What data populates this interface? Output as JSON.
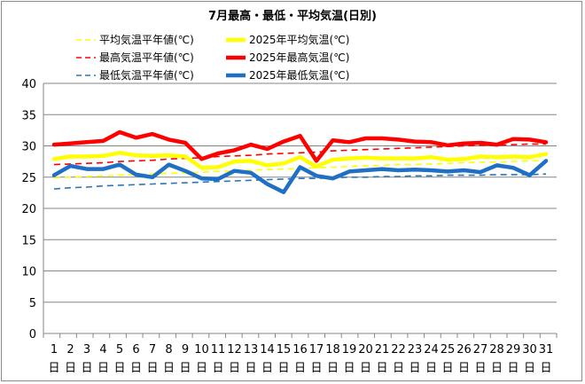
{
  "chart_data": {
    "type": "line",
    "title": "7月最高・最低・平均気温(日別)",
    "xlabel": "",
    "ylabel": "",
    "ylim": [
      0,
      40
    ],
    "yticks": [
      0,
      5,
      10,
      15,
      20,
      25,
      30,
      35,
      40
    ],
    "day_suffix": "日",
    "categories": [
      1,
      2,
      3,
      4,
      5,
      6,
      7,
      8,
      9,
      10,
      11,
      12,
      13,
      14,
      15,
      16,
      17,
      18,
      19,
      20,
      21,
      22,
      23,
      24,
      25,
      26,
      27,
      28,
      29,
      30,
      31
    ],
    "grid": "horizontal",
    "legend_position": "top",
    "series": [
      {
        "name": "平均気温平年値(℃)",
        "color": "#ffff00",
        "style": "dashed",
        "values": [
          24.9,
          25.0,
          25.1,
          25.2,
          25.3,
          25.4,
          25.5,
          25.6,
          25.7,
          25.8,
          25.9,
          26.0,
          26.1,
          26.2,
          26.3,
          26.4,
          26.5,
          26.6,
          26.7,
          26.8,
          26.9,
          27.0,
          27.0,
          27.1,
          27.2,
          27.3,
          27.4,
          27.4,
          27.5,
          27.6,
          27.6
        ]
      },
      {
        "name": "2025年平均気温(℃)",
        "color": "#ffff00",
        "style": "solid",
        "values": [
          27.9,
          28.3,
          28.3,
          28.4,
          28.9,
          28.5,
          28.4,
          28.5,
          28.3,
          26.5,
          26.6,
          27.5,
          27.6,
          26.9,
          27.2,
          28.2,
          26.7,
          27.8,
          28.0,
          28.1,
          28.0,
          28.0,
          28.0,
          28.2,
          27.8,
          27.9,
          28.3,
          28.2,
          28.3,
          28.2,
          28.7
        ]
      },
      {
        "name": "最高気温平年値(℃)",
        "color": "#ff0000",
        "style": "dashed",
        "values": [
          27.0,
          27.1,
          27.2,
          27.3,
          27.5,
          27.6,
          27.7,
          27.9,
          28.0,
          28.1,
          28.3,
          28.4,
          28.5,
          28.7,
          28.8,
          28.9,
          29.0,
          29.2,
          29.3,
          29.4,
          29.5,
          29.6,
          29.7,
          29.8,
          29.9,
          30.0,
          30.1,
          30.1,
          30.2,
          30.3,
          30.3
        ]
      },
      {
        "name": "2025年最高気温(℃)",
        "color": "#ff0000",
        "style": "solid",
        "values": [
          30.2,
          30.4,
          30.6,
          30.8,
          32.2,
          31.3,
          31.9,
          31.0,
          30.5,
          27.9,
          28.8,
          29.3,
          30.2,
          29.5,
          30.7,
          31.6,
          27.6,
          30.9,
          30.6,
          31.2,
          31.2,
          31.0,
          30.7,
          30.6,
          30.1,
          30.4,
          30.5,
          30.2,
          31.1,
          31.0,
          30.6
        ]
      },
      {
        "name": "最低気温平年値(℃)",
        "color": "#2e75b6",
        "style": "dashed",
        "values": [
          23.1,
          23.3,
          23.4,
          23.6,
          23.7,
          23.8,
          23.9,
          24.0,
          24.1,
          24.2,
          24.3,
          24.4,
          24.5,
          24.6,
          24.7,
          24.8,
          24.8,
          24.9,
          25.0,
          25.0,
          25.1,
          25.1,
          25.2,
          25.2,
          25.3,
          25.3,
          25.3,
          25.4,
          25.4,
          25.4,
          25.5
        ]
      },
      {
        "name": "2025年最低気温(℃)",
        "color": "#1f6fc5",
        "style": "solid",
        "values": [
          25.3,
          26.8,
          26.3,
          26.3,
          27.0,
          25.4,
          25.0,
          27.0,
          26.0,
          24.8,
          24.7,
          26.0,
          25.7,
          23.9,
          22.6,
          26.6,
          25.2,
          24.8,
          25.9,
          26.1,
          26.3,
          26.1,
          26.2,
          26.1,
          25.9,
          26.1,
          25.8,
          26.9,
          26.5,
          25.3,
          27.6
        ]
      }
    ]
  }
}
